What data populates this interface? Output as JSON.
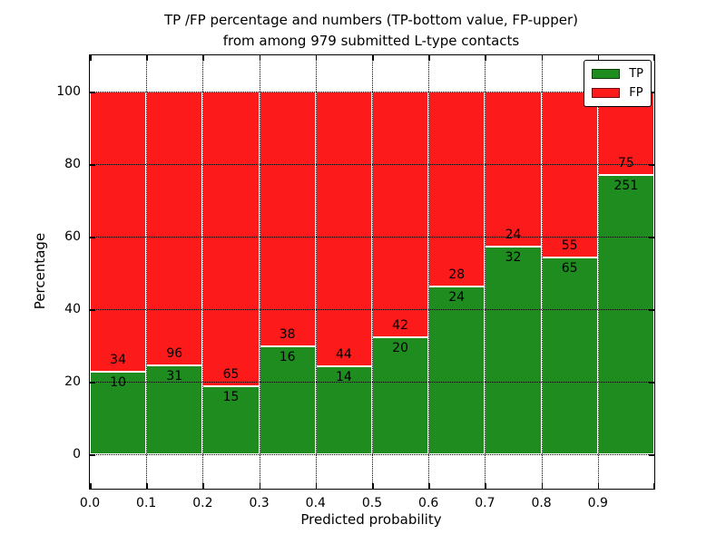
{
  "figure": {
    "title_line1": "TP /FP percentage and numbers (TP-bottom value, FP-upper)",
    "title_line2": "from among 979 submitted L-type contacts",
    "xlabel": "Predicted probability",
    "ylabel": "Percentage"
  },
  "legend": {
    "position": "upper right",
    "items": [
      {
        "label": "TP",
        "color": "#1e8c1e"
      },
      {
        "label": "FP",
        "color": "#fc1a1a"
      }
    ]
  },
  "chart_data": {
    "type": "bar",
    "subtype": "stacked-percentage-histogram",
    "title": "TP /FP percentage and numbers (TP-bottom value, FP-upper) from among 979 submitted L-type contacts",
    "xlabel": "Predicted probability",
    "ylabel": "Percentage",
    "total_contacts": 979,
    "bin_width": 0.1,
    "bin_starts": [
      0.0,
      0.1,
      0.2,
      0.3,
      0.4,
      0.5,
      0.6,
      0.7,
      0.8,
      0.9
    ],
    "series": [
      {
        "name": "TP",
        "color": "#1e8c1e",
        "position": "bottom",
        "counts": [
          10,
          31,
          15,
          16,
          14,
          20,
          24,
          32,
          65,
          251
        ]
      },
      {
        "name": "FP",
        "color": "#fc1a1a",
        "position": "top",
        "counts": [
          34,
          96,
          65,
          38,
          44,
          42,
          28,
          24,
          55,
          75
        ]
      }
    ],
    "tp_percent_of_bin": [
      22.7,
      24.4,
      18.8,
      29.6,
      24.1,
      32.3,
      46.2,
      57.1,
      54.2,
      77.0
    ],
    "bar_total_percent": 100,
    "x_tick_labels": [
      "0.0",
      "0.1",
      "0.2",
      "0.3",
      "0.4",
      "0.5",
      "0.6",
      "0.7",
      "0.8",
      "0.9"
    ],
    "y_tick_values": [
      0,
      20,
      40,
      60,
      80,
      100
    ],
    "xlim": [
      0.0,
      1.0
    ],
    "ylim": [
      -9.5,
      110
    ],
    "grid": true,
    "grid_style": "dotted",
    "legend_position": "upper right"
  }
}
